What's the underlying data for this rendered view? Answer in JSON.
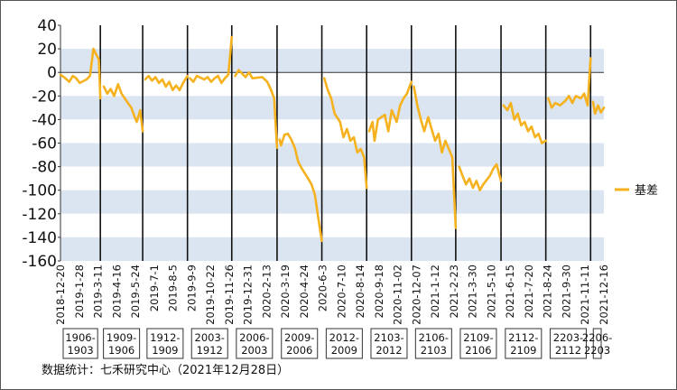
{
  "chart_data": {
    "type": "line",
    "ylim": [
      -160,
      40
    ],
    "yticks": [
      "40",
      "20",
      "0",
      "-20",
      "-40",
      "-60",
      "-80",
      "-100",
      "-120",
      "-140",
      "-160"
    ],
    "ytick_values": [
      40,
      20,
      0,
      -20,
      -40,
      -60,
      -80,
      -100,
      -120,
      -140,
      -160
    ],
    "xtick_labels": [
      "2018-12-20",
      "2019-1-28",
      "2019-3-11",
      "2019-4-16",
      "2019-5-24",
      "2019-7-1",
      "2019-8-5",
      "2019-9-9",
      "2019-10-22",
      "2019-11-26",
      "2019-12-31",
      "2020-2-13",
      "2020-3-19",
      "2020-4-24",
      "2020-6-3",
      "2020-7-10",
      "2020-8-14",
      "2020-9-18",
      "2020-11-02",
      "2020-12-07",
      "2021-1-12",
      "2021-2-23",
      "2021-3-30",
      "2021-5-10",
      "2021-6-15",
      "2021-7-20",
      "2021-8-24",
      "2021-9-30",
      "2021-11-11",
      "2021-12-16"
    ],
    "contract_periods": [
      "1906-1903",
      "1909-1906",
      "1912-1909",
      "2003-1912",
      "2006-2003",
      "2009-2006",
      "2012-2009",
      "2103-2012",
      "2106-2103",
      "2109-2106",
      "2112-2109",
      "2203-2112",
      "2206-2203"
    ],
    "boundary_dates": [
      "2019-3-11",
      "2019-6-5",
      "2019-9-4",
      "2019-12-3",
      "2020-3-4",
      "2020-6-3",
      "2020-9-2",
      "2020-12-2",
      "2021-3-2",
      "2021-6-2",
      "2021-9-1",
      "2021-12-1"
    ],
    "series": [
      {
        "name": "基差",
        "color": "#F5B21E",
        "points": [
          [
            "2018-12-20",
            -2
          ],
          [
            "2018-12-27",
            -4
          ],
          [
            "2019-1-7",
            -8
          ],
          [
            "2019-1-14",
            -3
          ],
          [
            "2019-1-21",
            -5
          ],
          [
            "2019-1-28",
            -9
          ],
          [
            "2019-2-11",
            -6
          ],
          [
            "2019-2-18",
            -3
          ],
          [
            "2019-2-25",
            20
          ],
          [
            "2019-3-4",
            14
          ],
          [
            "2019-3-8",
            11
          ],
          [
            "2019-3-11",
            -22
          ],
          [
            "2019-3-18",
            -12
          ],
          [
            "2019-3-25",
            -18
          ],
          [
            "2019-4-1",
            -14
          ],
          [
            "2019-4-8",
            -20
          ],
          [
            "2019-4-16",
            -10
          ],
          [
            "2019-4-23",
            -18
          ],
          [
            "2019-5-6",
            -26
          ],
          [
            "2019-5-13",
            -30
          ],
          [
            "2019-5-20",
            -38
          ],
          [
            "2019-5-24",
            -42
          ],
          [
            "2019-5-31",
            -32
          ],
          [
            "2019-6-5",
            -50
          ],
          [
            "2019-6-10",
            -6
          ],
          [
            "2019-6-17",
            -3
          ],
          [
            "2019-6-24",
            -7
          ],
          [
            "2019-7-1",
            -4
          ],
          [
            "2019-7-8",
            -9
          ],
          [
            "2019-7-15",
            -6
          ],
          [
            "2019-7-22",
            -12
          ],
          [
            "2019-7-29",
            -8
          ],
          [
            "2019-8-5",
            -15
          ],
          [
            "2019-8-12",
            -11
          ],
          [
            "2019-8-19",
            -15
          ],
          [
            "2019-8-26",
            -9
          ],
          [
            "2019-9-4",
            -3
          ],
          [
            "2019-9-9",
            -5
          ],
          [
            "2019-9-16",
            -8
          ],
          [
            "2019-9-23",
            -3
          ],
          [
            "2019-10-8",
            -6
          ],
          [
            "2019-10-15",
            -4
          ],
          [
            "2019-10-22",
            -8
          ],
          [
            "2019-10-29",
            -5
          ],
          [
            "2019-11-5",
            -3
          ],
          [
            "2019-11-12",
            -9
          ],
          [
            "2019-11-19",
            -5
          ],
          [
            "2019-11-26",
            -2
          ],
          [
            "2019-12-3",
            30
          ],
          [
            "2019-12-10",
            -3
          ],
          [
            "2019-12-17",
            2
          ],
          [
            "2019-12-24",
            -1
          ],
          [
            "2019-12-31",
            -4
          ],
          [
            "2020-1-7",
            0
          ],
          [
            "2020-1-14",
            -5
          ],
          [
            "2020-2-3",
            -4
          ],
          [
            "2020-2-13",
            -8
          ],
          [
            "2020-2-20",
            -14
          ],
          [
            "2020-2-27",
            -22
          ],
          [
            "2020-3-4",
            -64
          ],
          [
            "2020-3-9",
            -57
          ],
          [
            "2020-3-12",
            -62
          ],
          [
            "2020-3-19",
            -53
          ],
          [
            "2020-3-26",
            -52
          ],
          [
            "2020-4-2",
            -57
          ],
          [
            "2020-4-9",
            -64
          ],
          [
            "2020-4-16",
            -76
          ],
          [
            "2020-4-24",
            -82
          ],
          [
            "2020-5-6",
            -90
          ],
          [
            "2020-5-13",
            -95
          ],
          [
            "2020-5-20",
            -104
          ],
          [
            "2020-5-27",
            -124
          ],
          [
            "2020-6-3",
            -143
          ],
          [
            "2020-6-8",
            -5
          ],
          [
            "2020-6-15",
            -15
          ],
          [
            "2020-6-22",
            -22
          ],
          [
            "2020-6-29",
            -35
          ],
          [
            "2020-7-10",
            -42
          ],
          [
            "2020-7-17",
            -55
          ],
          [
            "2020-7-24",
            -48
          ],
          [
            "2020-7-31",
            -58
          ],
          [
            "2020-8-7",
            -55
          ],
          [
            "2020-8-14",
            -68
          ],
          [
            "2020-8-21",
            -65
          ],
          [
            "2020-8-28",
            -72
          ],
          [
            "2020-9-2",
            -98
          ],
          [
            "2020-9-7",
            -50
          ],
          [
            "2020-9-14",
            -42
          ],
          [
            "2020-9-18",
            -58
          ],
          [
            "2020-9-25",
            -40
          ],
          [
            "2020-10-9",
            -36
          ],
          [
            "2020-10-16",
            -50
          ],
          [
            "2020-10-23",
            -32
          ],
          [
            "2020-11-2",
            -42
          ],
          [
            "2020-11-9",
            -28
          ],
          [
            "2020-11-16",
            -22
          ],
          [
            "2020-11-23",
            -18
          ],
          [
            "2020-12-2",
            -8
          ],
          [
            "2020-12-7",
            -12
          ],
          [
            "2020-12-14",
            -28
          ],
          [
            "2020-12-21",
            -40
          ],
          [
            "2020-12-28",
            -50
          ],
          [
            "2021-1-5",
            -38
          ],
          [
            "2021-1-12",
            -48
          ],
          [
            "2021-1-19",
            -58
          ],
          [
            "2021-1-26",
            -52
          ],
          [
            "2021-2-2",
            -68
          ],
          [
            "2021-2-9",
            -58
          ],
          [
            "2021-2-23",
            -72
          ],
          [
            "2021-3-2",
            -132
          ],
          [
            "2021-3-9",
            -80
          ],
          [
            "2021-3-16",
            -88
          ],
          [
            "2021-3-23",
            -95
          ],
          [
            "2021-3-30",
            -90
          ],
          [
            "2021-4-6",
            -98
          ],
          [
            "2021-4-13",
            -92
          ],
          [
            "2021-4-20",
            -100
          ],
          [
            "2021-4-27",
            -95
          ],
          [
            "2021-5-10",
            -88
          ],
          [
            "2021-5-17",
            -82
          ],
          [
            "2021-5-24",
            -78
          ],
          [
            "2021-6-2",
            -92
          ],
          [
            "2021-6-7",
            -28
          ],
          [
            "2021-6-15",
            -32
          ],
          [
            "2021-6-22",
            -26
          ],
          [
            "2021-6-29",
            -40
          ],
          [
            "2021-7-6",
            -35
          ],
          [
            "2021-7-13",
            -45
          ],
          [
            "2021-7-20",
            -42
          ],
          [
            "2021-7-27",
            -50
          ],
          [
            "2021-8-3",
            -46
          ],
          [
            "2021-8-10",
            -55
          ],
          [
            "2021-8-17",
            -52
          ],
          [
            "2021-8-24",
            -60
          ],
          [
            "2021-9-1",
            -58
          ],
          [
            "2021-9-6",
            -22
          ],
          [
            "2021-9-13",
            -30
          ],
          [
            "2021-9-20",
            -26
          ],
          [
            "2021-9-30",
            -28
          ],
          [
            "2021-10-11",
            -24
          ],
          [
            "2021-10-18",
            -20
          ],
          [
            "2021-10-25",
            -26
          ],
          [
            "2021-11-1",
            -20
          ],
          [
            "2021-11-11",
            -22
          ],
          [
            "2021-11-18",
            -18
          ],
          [
            "2021-11-25",
            -28
          ],
          [
            "2021-12-1",
            12
          ],
          [
            "2021-12-6",
            -25
          ],
          [
            "2021-12-10",
            -35
          ],
          [
            "2021-12-16",
            -28
          ],
          [
            "2021-12-22",
            -34
          ],
          [
            "2021-12-28",
            -30
          ]
        ]
      }
    ],
    "grid": "horizontal alternating bands",
    "legend": "right"
  },
  "source_note": "数据统计：七禾研究中心（2021年12月28日）"
}
